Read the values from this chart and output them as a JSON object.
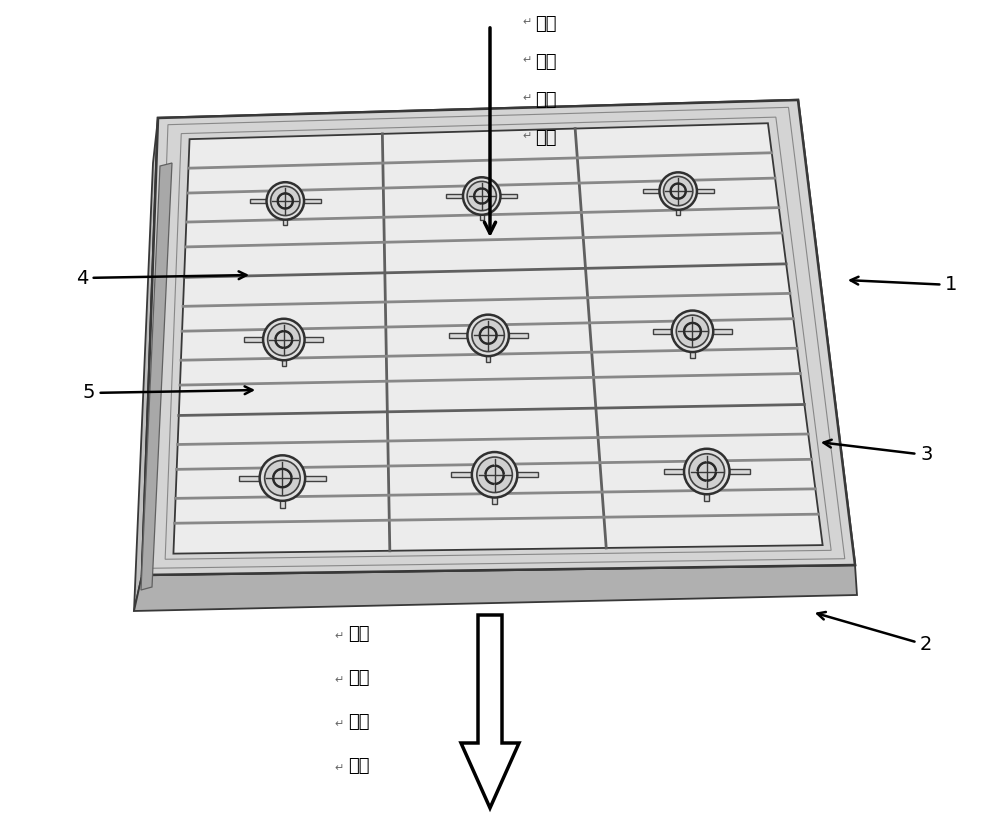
{
  "fig_width": 10.0,
  "fig_height": 8.36,
  "bg_color": "#ffffff",
  "label_1": "1",
  "label_2": "2",
  "label_3": "3",
  "label_4": "4",
  "label_5": "5",
  "top_text_lines": [
    "空间",
    "传播",
    "太赫",
    "兹波"
  ],
  "bottom_text_lines": [
    "被调",
    "制的",
    "太赫",
    "兹波"
  ],
  "panel_face": "#e8e8e8",
  "panel_left": "#c8c8c8",
  "panel_bottom": "#b8b8b8",
  "frame_dark": "#d0d0d0",
  "edge_c": "#383838",
  "grid_c": "#606060",
  "slot_c": "#888888"
}
